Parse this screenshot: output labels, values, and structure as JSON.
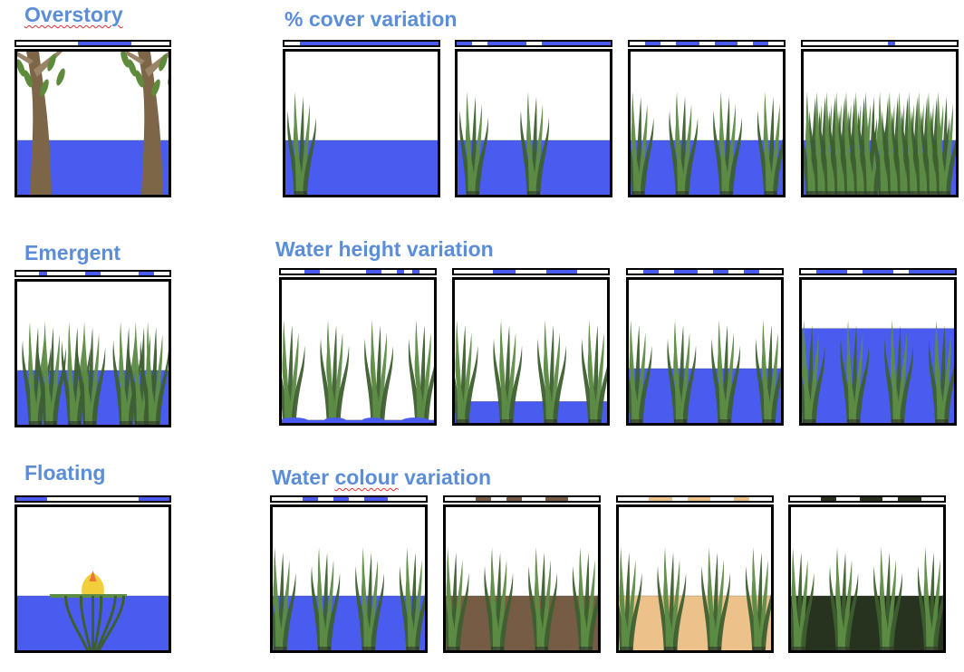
{
  "labels": {
    "overstory": "Overstory",
    "cover": "% cover variation",
    "emergent": "Emergent",
    "water_height": "Water height variation",
    "floating": "Floating",
    "water_colour": "Water colour variation"
  },
  "colors": {
    "water_blue": "#4a5cf0",
    "water_brown": "#765c44",
    "water_tan": "#ecc28a",
    "water_dark": "#27331f",
    "reed": "#5d8c45",
    "reed_dark": "#3d5f30",
    "trunk": "#7d6647",
    "leaf": "#5e8b3b",
    "flower": "#f2cf3a",
    "label": "#5b8ed6"
  },
  "panels": [
    {
      "id": "overstory",
      "type": "trees",
      "water": "blue",
      "water_level": 0.38,
      "strip": [
        "w",
        "w",
        "w",
        "w",
        "w",
        "w",
        "w",
        "w",
        "b",
        "b",
        "b",
        "b",
        "b",
        "b",
        "b",
        "w",
        "w",
        "w",
        "w",
        "w"
      ]
    },
    {
      "id": "cover-1",
      "type": "reeds",
      "count": 1,
      "water": "blue",
      "water_level": 0.38,
      "strip": [
        "w",
        "w",
        "b",
        "b",
        "b",
        "b",
        "b",
        "b",
        "b",
        "b",
        "b",
        "b",
        "b",
        "b",
        "b",
        "b",
        "b",
        "b",
        "b",
        "b"
      ]
    },
    {
      "id": "cover-2",
      "type": "reeds",
      "count": 2,
      "water": "blue",
      "water_level": 0.38,
      "strip": [
        "b",
        "b",
        "w",
        "w",
        "b",
        "b",
        "b",
        "b",
        "b",
        "w",
        "w",
        "b",
        "b",
        "b",
        "b",
        "b",
        "b",
        "b",
        "b",
        "b"
      ]
    },
    {
      "id": "cover-3",
      "type": "reeds",
      "count": 4,
      "water": "blue",
      "water_level": 0.38,
      "strip": [
        "w",
        "w",
        "b",
        "b",
        "w",
        "w",
        "b",
        "b",
        "b",
        "w",
        "w",
        "b",
        "b",
        "b",
        "w",
        "w",
        "b",
        "b",
        "w",
        "w"
      ]
    },
    {
      "id": "cover-4",
      "type": "reeds",
      "count": 14,
      "water": "blue",
      "water_level": 0.38,
      "strip": [
        "w",
        "w",
        "w",
        "w",
        "w",
        "w",
        "w",
        "w",
        "w",
        "w",
        "w",
        "b",
        "w",
        "w",
        "w",
        "w",
        "w",
        "w",
        "w",
        "w"
      ]
    },
    {
      "id": "emergent",
      "type": "reeds",
      "count": 7,
      "water": "blue",
      "water_level": 0.38,
      "strip": [
        "w",
        "w",
        "w",
        "b",
        "w",
        "w",
        "w",
        "w",
        "w",
        "b",
        "b",
        "w",
        "w",
        "w",
        "w",
        "w",
        "b",
        "b",
        "w",
        "w"
      ]
    },
    {
      "id": "height-1",
      "type": "reeds",
      "count": 4,
      "water": "blue",
      "water_level": 0.02,
      "strip": [
        "w",
        "w",
        "w",
        "b",
        "b",
        "w",
        "w",
        "w",
        "w",
        "w",
        "w",
        "b",
        "b",
        "w",
        "w",
        "b",
        "w",
        "b",
        "w",
        "w"
      ]
    },
    {
      "id": "height-2",
      "type": "reeds",
      "count": 4,
      "water": "blue",
      "water_level": 0.15,
      "strip": [
        "w",
        "w",
        "w",
        "w",
        "w",
        "b",
        "b",
        "b",
        "w",
        "w",
        "w",
        "w",
        "b",
        "b",
        "b",
        "b",
        "w",
        "w",
        "w",
        "w"
      ]
    },
    {
      "id": "height-3",
      "type": "reeds",
      "count": 4,
      "water": "blue",
      "water_level": 0.38,
      "strip": [
        "w",
        "w",
        "b",
        "b",
        "w",
        "w",
        "b",
        "b",
        "b",
        "w",
        "w",
        "b",
        "b",
        "w",
        "w",
        "b",
        "b",
        "w",
        "w",
        "w"
      ]
    },
    {
      "id": "height-4",
      "type": "reeds",
      "count": 4,
      "water": "blue",
      "water_level": 0.66,
      "strip": [
        "w",
        "w",
        "b",
        "b",
        "b",
        "b",
        "w",
        "w",
        "b",
        "b",
        "b",
        "b",
        "w",
        "w",
        "b",
        "b",
        "b",
        "b",
        "b",
        "b"
      ]
    },
    {
      "id": "floating",
      "type": "lily",
      "water": "blue",
      "water_level": 0.38,
      "strip": [
        "b",
        "b",
        "b",
        "b",
        "w",
        "w",
        "w",
        "w",
        "w",
        "w",
        "w",
        "w",
        "w",
        "w",
        "w",
        "w",
        "b",
        "b",
        "b",
        "b"
      ]
    },
    {
      "id": "colour-1",
      "type": "reeds",
      "count": 4,
      "water": "blue",
      "water_level": 0.38,
      "strip": [
        "w",
        "w",
        "w",
        "w",
        "b",
        "b",
        "w",
        "w",
        "b",
        "b",
        "w",
        "w",
        "b",
        "b",
        "b",
        "w",
        "w",
        "w",
        "w",
        "w"
      ]
    },
    {
      "id": "colour-2",
      "type": "reeds",
      "count": 4,
      "water": "brown",
      "water_level": 0.38,
      "strip": [
        "w",
        "w",
        "w",
        "w",
        "n",
        "n",
        "w",
        "w",
        "n",
        "n",
        "w",
        "w",
        "w",
        "n",
        "n",
        "n",
        "w",
        "w",
        "w",
        "w"
      ]
    },
    {
      "id": "colour-3",
      "type": "reeds",
      "count": 4,
      "water": "tan",
      "water_level": 0.38,
      "strip": [
        "w",
        "w",
        "w",
        "w",
        "t",
        "t",
        "t",
        "w",
        "w",
        "t",
        "t",
        "t",
        "w",
        "w",
        "w",
        "t",
        "t",
        "w",
        "w",
        "w"
      ]
    },
    {
      "id": "colour-4",
      "type": "reeds",
      "count": 4,
      "water": "dark",
      "water_level": 0.38,
      "strip": [
        "w",
        "w",
        "w",
        "w",
        "d",
        "d",
        "w",
        "w",
        "w",
        "d",
        "d",
        "d",
        "w",
        "w",
        "d",
        "d",
        "d",
        "w",
        "w",
        "w"
      ]
    }
  ]
}
